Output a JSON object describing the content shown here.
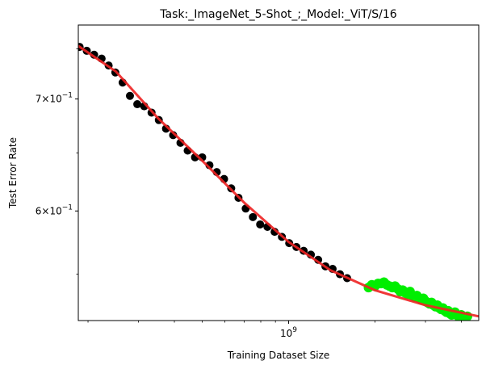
{
  "chart_data": {
    "type": "scatter",
    "title": "Task:_ImageNet_5-Shot_;_Model:_ViT/S/16",
    "xlabel": "Training Dataset Size",
    "ylabel": "Test Error Rate",
    "xscale": "log",
    "yscale": "log",
    "xlim": [
      185000000,
      4600000000
    ],
    "ylim": [
      0.516,
      0.775
    ],
    "x_ticks": [
      {
        "value": 1000000000,
        "base": "10",
        "exp": "9"
      }
    ],
    "y_ticks": [
      {
        "value": 0.7,
        "mant": "7",
        "base": "10",
        "exp": "−1"
      },
      {
        "value": 0.6,
        "mant": "6",
        "base": "10",
        "exp": "−1"
      }
    ],
    "grid": false,
    "legend": "none",
    "colors": {
      "train_points": "#000000",
      "heldout_points": "#00ee00",
      "fit_line": "#ee2222"
    },
    "series": [
      {
        "role": "train",
        "points": [
          [
            187000000,
            0.752
          ],
          [
            198000000,
            0.748
          ],
          [
            210000000,
            0.744
          ],
          [
            223000000,
            0.74
          ],
          [
            236000000,
            0.733
          ],
          [
            249000000,
            0.726
          ],
          [
            264000000,
            0.716
          ],
          [
            280000000,
            0.703
          ],
          [
            297000000,
            0.695
          ],
          [
            314000000,
            0.693
          ],
          [
            333000000,
            0.687
          ],
          [
            353000000,
            0.68
          ],
          [
            374000000,
            0.672
          ],
          [
            396000000,
            0.666
          ],
          [
            420000000,
            0.659
          ],
          [
            445000000,
            0.652
          ],
          [
            472000000,
            0.646
          ],
          [
            500000000,
            0.646
          ],
          [
            530000000,
            0.639
          ],
          [
            562000000,
            0.633
          ],
          [
            596000000,
            0.627
          ],
          [
            631000000,
            0.619
          ],
          [
            669000000,
            0.611
          ],
          [
            709000000,
            0.602
          ],
          [
            751000000,
            0.595
          ],
          [
            796000000,
            0.589
          ],
          [
            844000000,
            0.587
          ],
          [
            894000000,
            0.583
          ],
          [
            948000000,
            0.579
          ],
          [
            1005000000,
            0.574
          ],
          [
            1065000000,
            0.571
          ],
          [
            1129000000,
            0.568
          ],
          [
            1196000000,
            0.565
          ],
          [
            1268000000,
            0.561
          ],
          [
            1344000000,
            0.556
          ],
          [
            1424000000,
            0.554
          ],
          [
            1510000000,
            0.55
          ],
          [
            1600000000,
            0.547
          ]
        ]
      },
      {
        "role": "heldout",
        "points": [
          [
            1900000000,
            0.54
          ],
          [
            1950000000,
            0.542
          ],
          [
            2000000000,
            0.541
          ],
          [
            2050000000,
            0.543
          ],
          [
            2100000000,
            0.543
          ],
          [
            2150000000,
            0.544
          ],
          [
            2200000000,
            0.542
          ],
          [
            2250000000,
            0.541
          ],
          [
            2300000000,
            0.54
          ],
          [
            2350000000,
            0.541
          ],
          [
            2400000000,
            0.539
          ],
          [
            2450000000,
            0.537
          ],
          [
            2500000000,
            0.538
          ],
          [
            2550000000,
            0.536
          ],
          [
            2600000000,
            0.535
          ],
          [
            2650000000,
            0.537
          ],
          [
            2700000000,
            0.534
          ],
          [
            2750000000,
            0.533
          ],
          [
            2800000000,
            0.534
          ],
          [
            2850000000,
            0.532
          ],
          [
            2900000000,
            0.531
          ],
          [
            2950000000,
            0.532
          ],
          [
            3000000000,
            0.53
          ],
          [
            3050000000,
            0.529
          ],
          [
            3100000000,
            0.528
          ],
          [
            3150000000,
            0.529
          ],
          [
            3200000000,
            0.527
          ],
          [
            3250000000,
            0.526
          ],
          [
            3300000000,
            0.527
          ],
          [
            3350000000,
            0.525
          ],
          [
            3400000000,
            0.524
          ],
          [
            3450000000,
            0.525
          ],
          [
            3500000000,
            0.523
          ],
          [
            3550000000,
            0.522
          ],
          [
            3600000000,
            0.523
          ],
          [
            3650000000,
            0.521
          ],
          [
            3700000000,
            0.52
          ],
          [
            3800000000,
            0.522
          ],
          [
            3900000000,
            0.519
          ],
          [
            4000000000,
            0.52
          ],
          [
            4100000000,
            0.518
          ],
          [
            4200000000,
            0.519
          ]
        ]
      },
      {
        "role": "fit",
        "line": [
          [
            185000000,
            0.753
          ],
          [
            250000000,
            0.727
          ],
          [
            350000000,
            0.682
          ],
          [
            500000000,
            0.643
          ],
          [
            700000000,
            0.607
          ],
          [
            1000000000,
            0.575
          ],
          [
            1400000000,
            0.553
          ],
          [
            2000000000,
            0.538
          ],
          [
            3000000000,
            0.527
          ],
          [
            4600000000,
            0.519
          ]
        ]
      }
    ]
  }
}
